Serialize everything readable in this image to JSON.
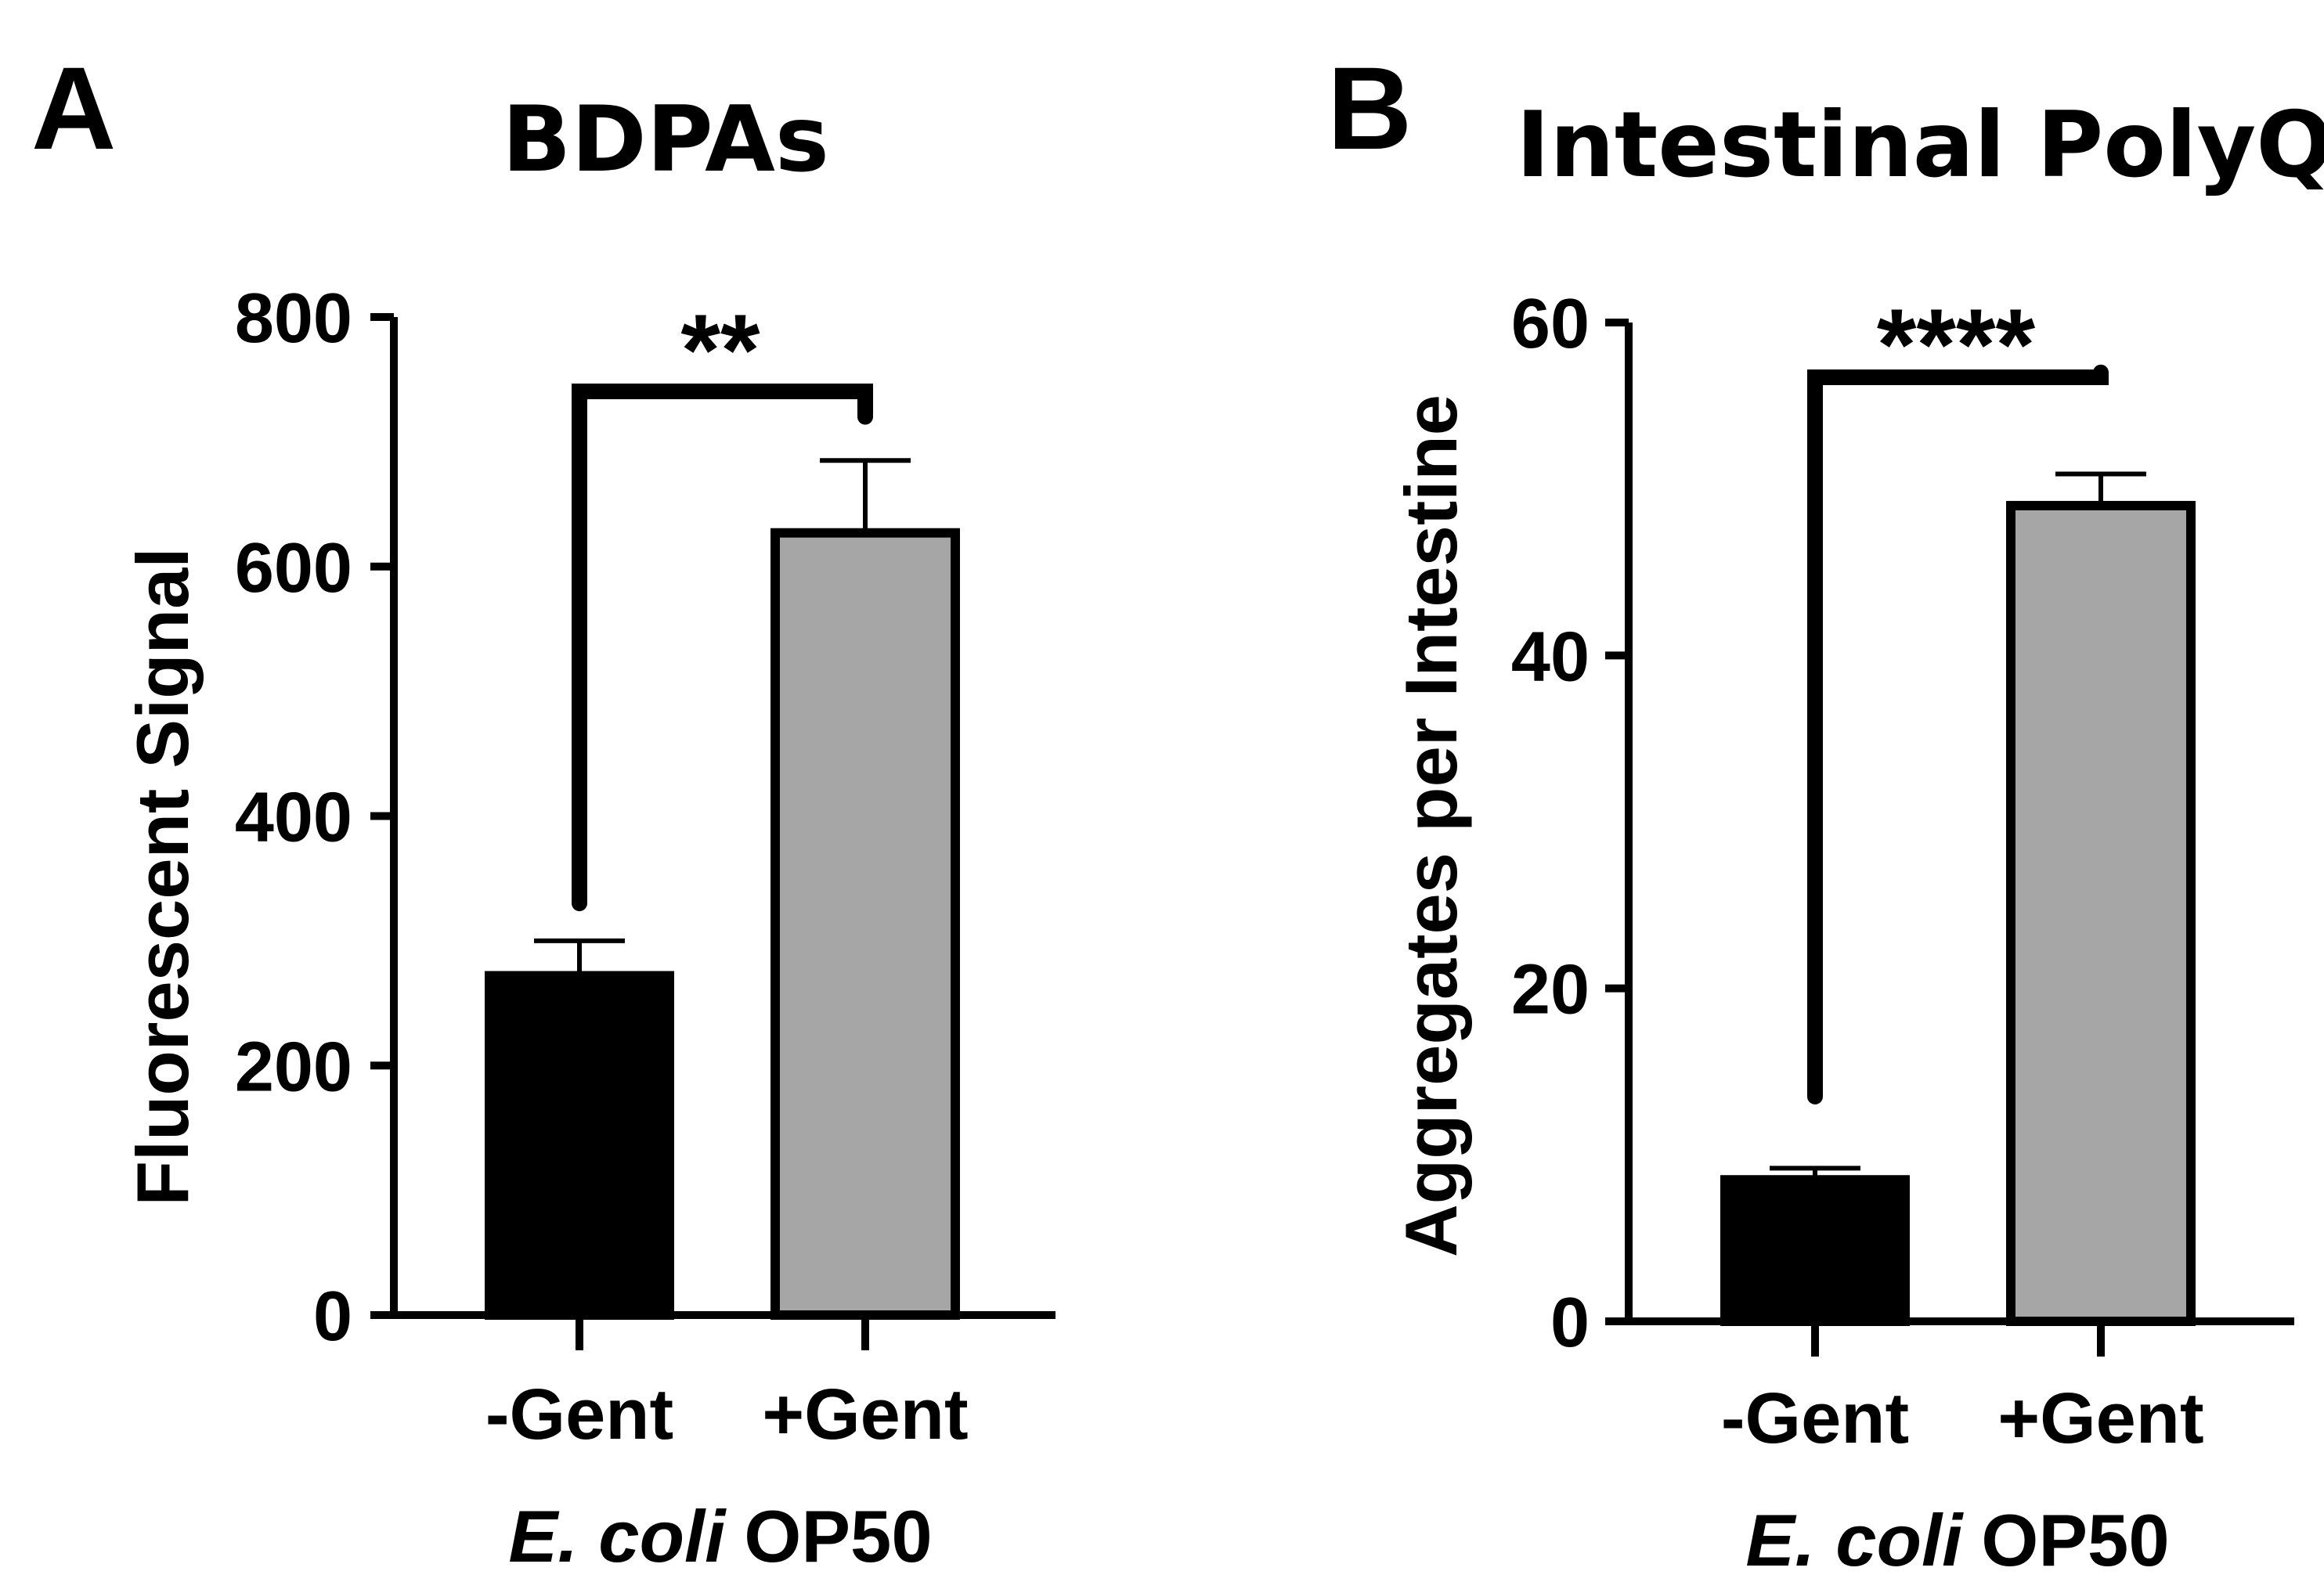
{
  "chart_data": [
    {
      "type": "bar",
      "panel": "A",
      "title": "BDPAs",
      "ylabel": "Fluorescent Signal",
      "xlabel": {
        "italic": "E. coli",
        "rest": "OP50"
      },
      "categories": [
        "-Gent",
        "+Gent"
      ],
      "values": [
        272,
        627
      ],
      "errors": [
        28,
        58
      ],
      "colors": [
        "#000000",
        "#a6a6a6"
      ],
      "yticks": [
        0,
        200,
        400,
        600,
        800
      ],
      "ylim": [
        0,
        800
      ],
      "significance": "**",
      "bracket_left_top": 330,
      "bracket_right_top": 720
    },
    {
      "type": "bar",
      "panel": "B",
      "title": "Intestinal PolyQ",
      "ylabel": "Aggregates per Intestine",
      "xlabel": {
        "italic": "E. coli",
        "rest": "OP50"
      },
      "categories": [
        "-Gent",
        "+Gent"
      ],
      "values": [
        8.5,
        49
      ],
      "errors": [
        0.7,
        1.9
      ],
      "colors": [
        "#000000",
        "#a6a6a6"
      ],
      "yticks": [
        0,
        20,
        40,
        60
      ],
      "ylim": [
        0,
        60
      ],
      "significance": "****",
      "bracket_left_top": 13.5,
      "bracket_right_top": 57
    }
  ]
}
